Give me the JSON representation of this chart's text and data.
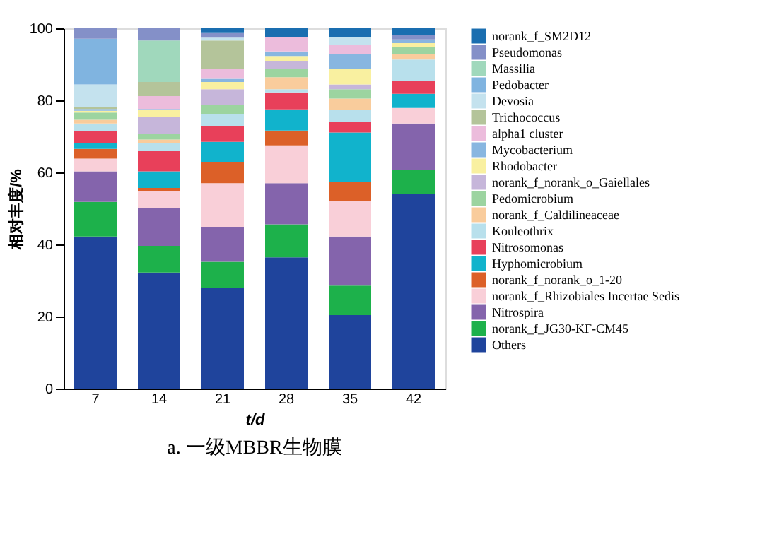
{
  "chart_data": {
    "type": "bar",
    "stacked": true,
    "title": "a. 一级MBBR生物膜",
    "xlabel": "t/d",
    "ylabel": "相对丰度/%",
    "categories": [
      "7",
      "14",
      "21",
      "28",
      "35",
      "42"
    ],
    "ylim": [
      0,
      100
    ],
    "yticks": [
      0,
      20,
      40,
      60,
      80,
      100
    ],
    "grid": false,
    "legend": "right",
    "series": [
      {
        "name": "Others",
        "color": "#1f449c",
        "values": [
          42.2,
          32.2,
          28.0,
          36.4,
          20.4,
          54.1
        ]
      },
      {
        "name": "norank_f_JG30-KF-CM45",
        "color": "#1db14b",
        "values": [
          9.6,
          7.4,
          7.2,
          9.2,
          8.2,
          6.6
        ]
      },
      {
        "name": "Nitrospira",
        "color": "#8464ac",
        "values": [
          8.5,
          10.5,
          9.6,
          11.4,
          13.6,
          12.9
        ]
      },
      {
        "name": "norank_f_Rhizobiales Incertae Sedis",
        "color": "#f9cfd8",
        "values": [
          3.5,
          4.7,
          12.2,
          10.5,
          9.8,
          4.3
        ]
      },
      {
        "name": "norank_f_norank_o_1-20",
        "color": "#dc6028",
        "values": [
          2.7,
          0.9,
          5.9,
          4.1,
          5.3,
          0
        ]
      },
      {
        "name": "Hyphomicrobium",
        "color": "#11b3cc",
        "values": [
          1.6,
          4.6,
          5.6,
          5.9,
          13.8,
          3.9
        ]
      },
      {
        "name": "Nitrosomonas",
        "color": "#e8405a",
        "values": [
          3.3,
          5.6,
          4.4,
          4.7,
          2.9,
          3.6
        ]
      },
      {
        "name": "Kouleothrix",
        "color": "#b8e0ec",
        "values": [
          2.2,
          2.2,
          3.3,
          0.9,
          3.3,
          5.9
        ]
      },
      {
        "name": "norank_f_Caldilineaceae",
        "color": "#f9cc9c",
        "values": [
          1.0,
          1.0,
          0,
          3.3,
          3.2,
          1.6
        ]
      },
      {
        "name": "Pedomicrobium",
        "color": "#9cd4a0",
        "values": [
          2.0,
          1.6,
          2.6,
          2.3,
          2.6,
          2.0
        ]
      },
      {
        "name": "norank_f_norank_o_Gaiellales",
        "color": "#c6b6da",
        "values": [
          null,
          4.6,
          4.3,
          2.2,
          1.3,
          0
        ]
      },
      {
        "name": "Rhodobacter",
        "color": "#f9f0a0",
        "values": [
          0.5,
          2.0,
          2.0,
          1.4,
          4.3,
          1.0
        ]
      },
      {
        "name": "Mycobacterium",
        "color": "#88b6e0",
        "values": [
          0.5,
          0.3,
          0.9,
          1.3,
          4.2,
          1.0
        ]
      },
      {
        "name": "alpha1 cluster",
        "color": "#ecbcdc",
        "values": [
          null,
          3.6,
          2.7,
          3.9,
          2.4,
          0
        ]
      },
      {
        "name": "Trichococcus",
        "color": "#b4c49a",
        "values": [
          0.5,
          3.9,
          7.9,
          0,
          0,
          0
        ]
      },
      {
        "name": "Devosia",
        "color": "#c4e2ee",
        "values": [
          6.3,
          0,
          0.8,
          0,
          2.2,
          0
        ]
      },
      {
        "name": "Pedobacter",
        "color": "#80b4e0",
        "values": [
          12.7,
          0,
          0,
          0,
          0,
          0
        ]
      },
      {
        "name": "Massilia",
        "color": "#a0d8bc",
        "values": [
          0,
          11.5,
          0,
          0,
          0,
          0
        ]
      },
      {
        "name": "Pseudomonas",
        "color": "#8490c8",
        "values": [
          2.9,
          3.4,
          1.3,
          0,
          0,
          1.3
        ]
      },
      {
        "name": "norank_f_SM2D12",
        "color": "#1a6eb0",
        "values": [
          0,
          0,
          1.3,
          2.5,
          2.5,
          1.8
        ]
      }
    ]
  }
}
